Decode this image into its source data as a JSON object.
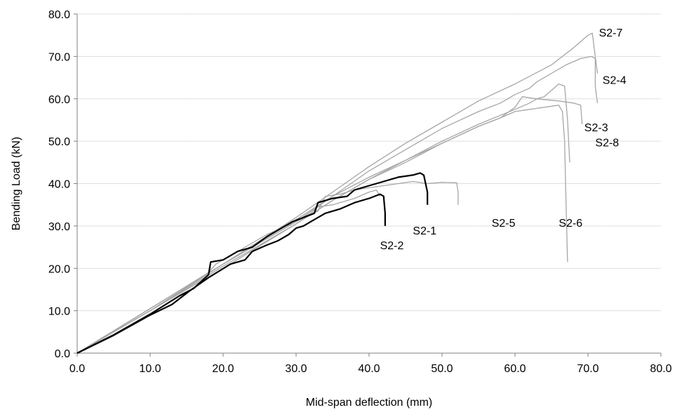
{
  "chart_data": {
    "type": "line",
    "title": "",
    "xlabel": "Mid-span deflection (mm)",
    "ylabel": "Bending Load (kN)",
    "xlim": [
      0,
      80
    ],
    "ylim": [
      0,
      80
    ],
    "x_ticks": [
      "0.0",
      "10.0",
      "20.0",
      "30.0",
      "40.0",
      "50.0",
      "60.0",
      "70.0",
      "80.0"
    ],
    "y_ticks": [
      "0.0",
      "10.0",
      "20.0",
      "30.0",
      "40.0",
      "50.0",
      "60.0",
      "70.0",
      "80.0"
    ],
    "grid": "horizontal",
    "legend": "none (series labelled directly on plot)",
    "colors": {
      "highlight": "#000000",
      "other": "#a6a6a6",
      "grid": "#bfbfbf",
      "axis": "#808080"
    },
    "series": [
      {
        "name": "S2-1",
        "highlight": true,
        "label_at": [
          46,
          29
        ],
        "points": [
          [
            0,
            0
          ],
          [
            5,
            4.3
          ],
          [
            10,
            9.2
          ],
          [
            14,
            13.5
          ],
          [
            16,
            15.3
          ],
          [
            18,
            18.5
          ],
          [
            18.3,
            21.5
          ],
          [
            20,
            22
          ],
          [
            22,
            24
          ],
          [
            24,
            25
          ],
          [
            26,
            27.5
          ],
          [
            27.5,
            29
          ],
          [
            29.5,
            31
          ],
          [
            31,
            32
          ],
          [
            32.5,
            33
          ],
          [
            33,
            35.5
          ],
          [
            35,
            36.5
          ],
          [
            37,
            37
          ],
          [
            38,
            38.5
          ],
          [
            40,
            39.5
          ],
          [
            42,
            40.5
          ],
          [
            44,
            41.5
          ],
          [
            46,
            42
          ],
          [
            47,
            42.5
          ],
          [
            47.5,
            42
          ],
          [
            48,
            38
          ],
          [
            48,
            35
          ]
        ]
      },
      {
        "name": "S2-2",
        "highlight": true,
        "label_at": [
          41.5,
          25.5
        ],
        "points": [
          [
            0,
            0
          ],
          [
            5,
            4.2
          ],
          [
            10,
            9
          ],
          [
            13,
            11.5
          ],
          [
            15.5,
            14.8
          ],
          [
            18,
            17.8
          ],
          [
            21,
            21
          ],
          [
            23,
            22
          ],
          [
            24,
            24
          ],
          [
            26,
            25.5
          ],
          [
            27.5,
            26.5
          ],
          [
            29,
            28
          ],
          [
            30,
            29.5
          ],
          [
            31,
            30
          ],
          [
            32,
            31
          ],
          [
            33,
            32
          ],
          [
            34,
            33
          ],
          [
            36,
            34
          ],
          [
            38,
            35.5
          ],
          [
            40,
            36.5
          ],
          [
            41.5,
            37.5
          ],
          [
            42,
            37
          ],
          [
            42.2,
            33
          ],
          [
            42.2,
            30
          ]
        ]
      },
      {
        "name": "S2-3",
        "highlight": false,
        "label_at": [
          69.5,
          53.3
        ],
        "points": [
          [
            0,
            0
          ],
          [
            10,
            10
          ],
          [
            20,
            21
          ],
          [
            25,
            26
          ],
          [
            30,
            31
          ],
          [
            35,
            37
          ],
          [
            40,
            41.5
          ],
          [
            45,
            45.5
          ],
          [
            50,
            49.5
          ],
          [
            55,
            53.5
          ],
          [
            58,
            55.5
          ],
          [
            60,
            58
          ],
          [
            61,
            60.5
          ],
          [
            63,
            60
          ],
          [
            66,
            59.5
          ],
          [
            68,
            59
          ],
          [
            69,
            58.5
          ],
          [
            69.2,
            54
          ]
        ]
      },
      {
        "name": "S2-4",
        "highlight": false,
        "label_at": [
          72,
          64.5
        ],
        "points": [
          [
            0,
            0
          ],
          [
            10,
            10.5
          ],
          [
            20,
            21
          ],
          [
            30,
            31.5
          ],
          [
            35,
            37
          ],
          [
            40,
            43
          ],
          [
            45,
            48
          ],
          [
            50,
            53
          ],
          [
            55,
            57
          ],
          [
            58,
            59
          ],
          [
            60,
            61
          ],
          [
            62,
            62.5
          ],
          [
            63,
            64
          ],
          [
            65,
            66
          ],
          [
            67,
            68
          ],
          [
            69,
            69.5
          ],
          [
            70.5,
            70
          ],
          [
            71,
            69.5
          ],
          [
            71,
            63
          ],
          [
            71.3,
            59
          ]
        ]
      },
      {
        "name": "S2-5",
        "highlight": false,
        "label_at": [
          56.8,
          30.8
        ],
        "points": [
          [
            0,
            0
          ],
          [
            10,
            10
          ],
          [
            20,
            21
          ],
          [
            25,
            26
          ],
          [
            30,
            31
          ],
          [
            33,
            33.5
          ],
          [
            34,
            37
          ],
          [
            36,
            37.5
          ],
          [
            38,
            38.5
          ],
          [
            40,
            39
          ],
          [
            42,
            39.5
          ],
          [
            44,
            40
          ],
          [
            46,
            40.5
          ],
          [
            48,
            40
          ],
          [
            50,
            40.3
          ],
          [
            52,
            40.2
          ],
          [
            52.2,
            38
          ],
          [
            52.2,
            35
          ]
        ]
      },
      {
        "name": "S2-6",
        "highlight": false,
        "label_at": [
          66,
          30.8
        ],
        "points": [
          [
            0,
            0
          ],
          [
            10,
            10
          ],
          [
            20,
            20.5
          ],
          [
            30,
            30.5
          ],
          [
            35,
            36
          ],
          [
            40,
            41
          ],
          [
            45,
            45
          ],
          [
            50,
            49.5
          ],
          [
            55,
            53.5
          ],
          [
            58,
            55.5
          ],
          [
            60,
            57
          ],
          [
            62,
            57.5
          ],
          [
            64,
            58
          ],
          [
            66,
            58.5
          ],
          [
            66.5,
            57
          ],
          [
            66.8,
            50
          ],
          [
            67,
            35
          ],
          [
            67.2,
            21.5
          ]
        ]
      },
      {
        "name": "S2-7",
        "highlight": false,
        "label_at": [
          71.5,
          75.7
        ],
        "points": [
          [
            0,
            0
          ],
          [
            10,
            10.5
          ],
          [
            20,
            21
          ],
          [
            30,
            32
          ],
          [
            35,
            38
          ],
          [
            40,
            44
          ],
          [
            45,
            49.5
          ],
          [
            50,
            54.5
          ],
          [
            55,
            59.5
          ],
          [
            60,
            63.5
          ],
          [
            65,
            68
          ],
          [
            68,
            72
          ],
          [
            70,
            75
          ],
          [
            70.6,
            75.5
          ],
          [
            71,
            70
          ],
          [
            71.3,
            66
          ]
        ]
      },
      {
        "name": "S2-8",
        "highlight": false,
        "label_at": [
          71,
          49.8
        ],
        "points": [
          [
            0,
            0
          ],
          [
            10,
            10
          ],
          [
            20,
            20
          ],
          [
            30,
            30.5
          ],
          [
            35,
            36
          ],
          [
            40,
            41
          ],
          [
            45,
            45.5
          ],
          [
            50,
            50
          ],
          [
            55,
            54
          ],
          [
            60,
            57.5
          ],
          [
            62,
            59
          ],
          [
            63,
            60
          ],
          [
            64,
            60.5
          ],
          [
            65,
            62
          ],
          [
            66,
            63.5
          ],
          [
            66.8,
            63
          ],
          [
            67.2,
            55
          ],
          [
            67.5,
            45
          ]
        ]
      },
      {
        "name": "",
        "highlight": false,
        "label_at": null,
        "points": [
          [
            0,
            0
          ],
          [
            10,
            10.5
          ],
          [
            18,
            19
          ],
          [
            19,
            21
          ],
          [
            22,
            24
          ],
          [
            26,
            28
          ],
          [
            30,
            31
          ],
          [
            32,
            33
          ],
          [
            33,
            34.5
          ],
          [
            35,
            35
          ],
          [
            38,
            36.5
          ],
          [
            40,
            38
          ],
          [
            41,
            38.5
          ],
          [
            41.5,
            37
          ]
        ]
      }
    ]
  }
}
